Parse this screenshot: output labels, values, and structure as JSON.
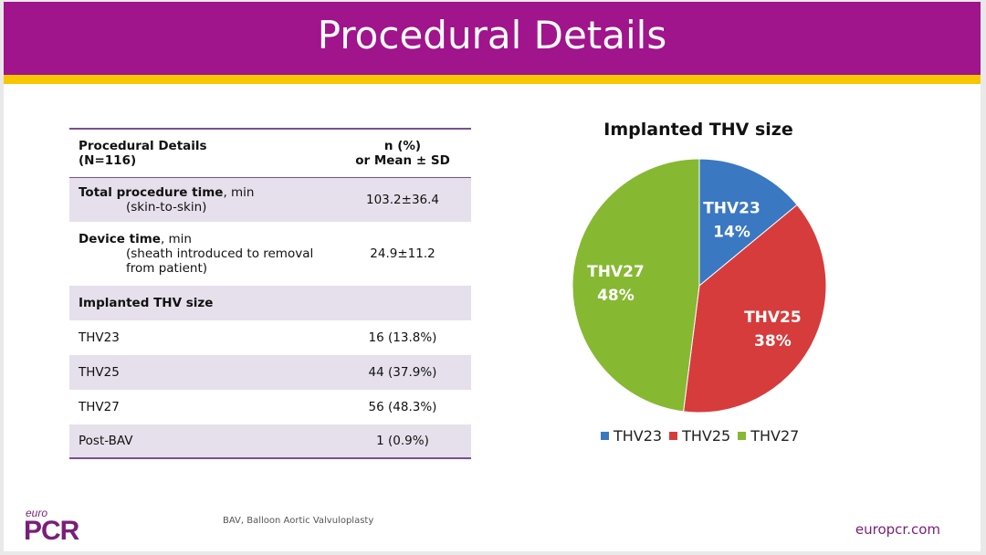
{
  "header": {
    "title": "Procedural Details"
  },
  "table": {
    "head_col1_line1": "Procedural Details",
    "head_col1_line2": "(N=116)",
    "head_col2_line1": "n (%)",
    "head_col2_line2": "or Mean ± SD",
    "total_label_bold": "Total procedure time",
    "total_label_rest": ", min",
    "total_sub": "(skin-to-skin)",
    "total_value": "103.2±36.4",
    "device_label_bold": "Device time",
    "device_label_rest": ", min",
    "device_sub_line1": "(sheath introduced to removal",
    "device_sub_line2": "from patient)",
    "device_value": "24.9±11.2",
    "implanted_label": "Implanted THV size",
    "rows": [
      {
        "label": "THV23",
        "value": "16 (13.8%)"
      },
      {
        "label": "THV25",
        "value": "44 (37.9%)"
      },
      {
        "label": "THV27",
        "value": "56 (48.3%)"
      }
    ],
    "post_label": "Post-BAV",
    "post_value": "1 (0.9%)"
  },
  "footer": {
    "footnote": "BAV, Balloon Aortic Valvuloplasty",
    "site": "europcr.com",
    "logo_euro": "euro",
    "logo_pcr": "PCR"
  },
  "chart_data": {
    "type": "pie",
    "title": "Implanted THV size",
    "categories": [
      "THV23",
      "THV25",
      "THV27"
    ],
    "values": [
      14,
      38,
      48
    ],
    "labels": [
      "14%",
      "38%",
      "48%"
    ],
    "colors": [
      "#3a78c2",
      "#d63c3c",
      "#86b832"
    ],
    "legend": "bottom"
  }
}
